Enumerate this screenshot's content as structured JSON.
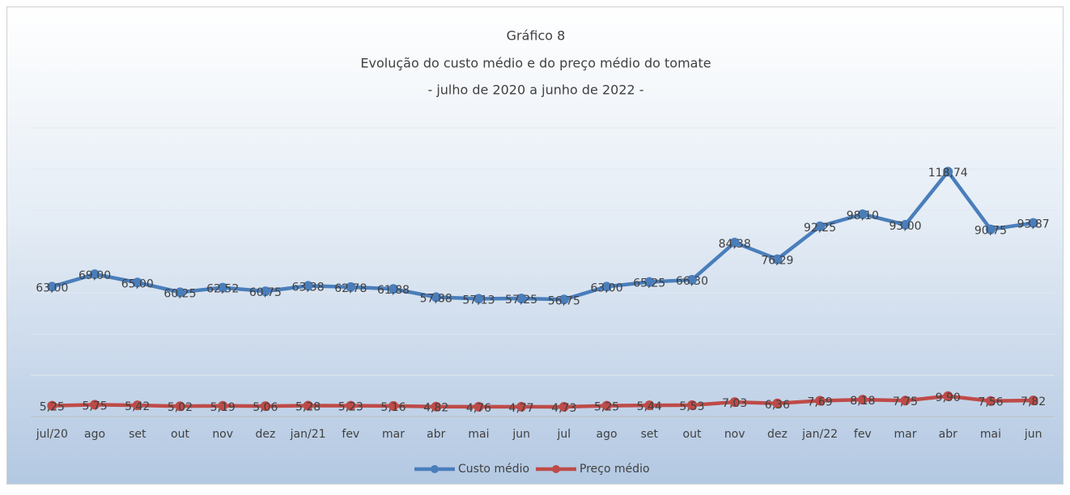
{
  "chart_data": {
    "type": "line",
    "title": "Gráfico 8",
    "subtitle": [
      "Evolução do custo médio e do preço médio do tomate",
      "-  julho de 2020 a junho de 2022 -"
    ],
    "categories": [
      "jul/20",
      "ago",
      "set",
      "out",
      "nov",
      "dez",
      "jan/21",
      "fev",
      "mar",
      "abr",
      "mai",
      "jun",
      "jul",
      "ago",
      "set",
      "out",
      "nov",
      "dez",
      "jan/22",
      "fev",
      "mar",
      "abr",
      "mai",
      "jun"
    ],
    "series": [
      {
        "name": "Custo médio",
        "color": "#4a7ebb",
        "values": [
          63.0,
          69.0,
          65.0,
          60.25,
          62.52,
          60.75,
          63.38,
          62.78,
          61.88,
          57.88,
          57.13,
          57.25,
          56.75,
          63.0,
          65.25,
          66.3,
          84.38,
          76.29,
          92.25,
          98.1,
          93.0,
          118.74,
          90.75,
          93.87
        ],
        "value_labels": [
          "63,00",
          "69,00",
          "65,00",
          "60,25",
          "62,52",
          "60,75",
          "63,38",
          "62,78",
          "61,88",
          "57,88",
          "57,13",
          "57,25",
          "56,75",
          "63,00",
          "65,25",
          "66,30",
          "84,38",
          "76,29",
          "92,25",
          "98,10",
          "93,00",
          "118,74",
          "90,75",
          "93,87"
        ]
      },
      {
        "name": "Preço médio",
        "color": "#be4b48",
        "values": [
          5.25,
          5.75,
          5.42,
          5.02,
          5.19,
          5.06,
          5.28,
          5.23,
          5.16,
          4.82,
          4.76,
          4.77,
          4.73,
          5.25,
          5.44,
          5.53,
          7.03,
          6.36,
          7.69,
          8.18,
          7.75,
          9.9,
          7.56,
          7.82
        ],
        "value_labels": [
          "5,25",
          "5,75",
          "5,42",
          "5,02",
          "5,19",
          "5,06",
          "5,28",
          "5,23",
          "5,16",
          "4,82",
          "4,76",
          "4,77",
          "4,73",
          "5,25",
          "5,44",
          "5,53",
          "7,03",
          "6,36",
          "7,69",
          "8,18",
          "7,75",
          "9,90",
          "7,56",
          "7,82"
        ]
      }
    ],
    "ylim": [
      0,
      140
    ],
    "yticks": [
      0,
      20,
      40,
      60,
      80,
      100,
      120,
      140
    ],
    "grid": true,
    "legend": "bottom"
  }
}
